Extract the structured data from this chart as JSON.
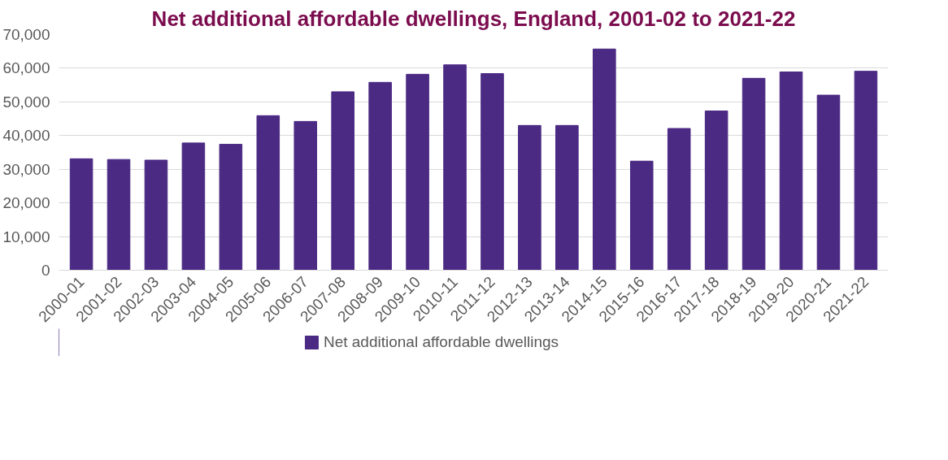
{
  "chart_data": {
    "type": "bar",
    "title": "Net additional affordable dwellings, England, 2001-02 to 2021-22",
    "categories": [
      "2000-01",
      "2001-02",
      "2002-03",
      "2003-04",
      "2004-05",
      "2005-06",
      "2006-07",
      "2007-08",
      "2008-09",
      "2009-10",
      "2010-11",
      "2011-12",
      "2012-13",
      "2013-14",
      "2014-15",
      "2015-16",
      "2016-17",
      "2017-18",
      "2018-19",
      "2019-20",
      "2020-21",
      "2021-22"
    ],
    "series": [
      {
        "name": "Net additional affordable dwellings",
        "color": "#4b2a84",
        "values": [
          33100,
          32900,
          32700,
          37800,
          37400,
          45900,
          44200,
          53000,
          55800,
          58200,
          61000,
          58400,
          43000,
          43000,
          65700,
          32400,
          42100,
          47300,
          57000,
          58900,
          52000,
          59100
        ]
      }
    ],
    "ylim": [
      0,
      70000
    ],
    "yticks": [
      0,
      {
        "value": 10000,
        "label": "10,000"
      },
      {
        "value": 20000,
        "label": "20,000"
      },
      {
        "value": 30000,
        "label": "30,000"
      },
      {
        "value": 40000,
        "label": "40,000"
      },
      {
        "value": 50000,
        "label": "50,000"
      },
      {
        "value": 60000,
        "label": "60,000"
      },
      {
        "value": 70000,
        "label": "70,000"
      }
    ],
    "grid": "y",
    "legend": "bottom"
  }
}
